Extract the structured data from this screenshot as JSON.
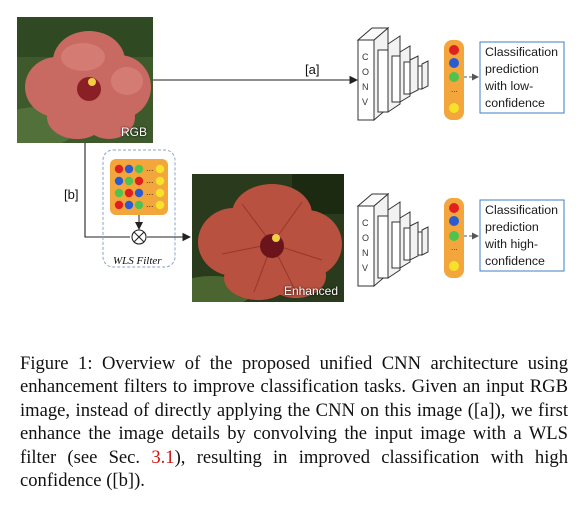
{
  "figure": {
    "label_rgb": "RGB",
    "label_enhanced": "Enhanced",
    "path_a_label": "[a]",
    "path_b_label": "[b]",
    "filter_label": "WLS Filter",
    "conv_letters": [
      "C",
      "O",
      "N",
      "V"
    ],
    "dots": "...",
    "output_low": [
      "Classification",
      "prediction",
      "with low-",
      "confidence"
    ],
    "output_high": [
      "Classification",
      "prediction",
      "with high-",
      "confidence"
    ],
    "colors": {
      "accent_box": "#f3a63c",
      "output_border": "#3f7fc0",
      "node_red": "#e02020",
      "node_blue": "#2a5bd0",
      "node_green": "#4fc24f",
      "node_yellow": "#f7e22a"
    }
  },
  "caption": {
    "prefix": "Figure 1: Overview of the proposed unified CNN architecture using enhancement filters to improve classification tasks. Given an input RGB image, instead of directly applying the CNN on this image ([a]), we first enhance the image details by convolving the input image with a WLS filter (see Sec. ",
    "ref": "3.1",
    "suffix": "), resulting in improved classification with high confidence ([b])."
  }
}
